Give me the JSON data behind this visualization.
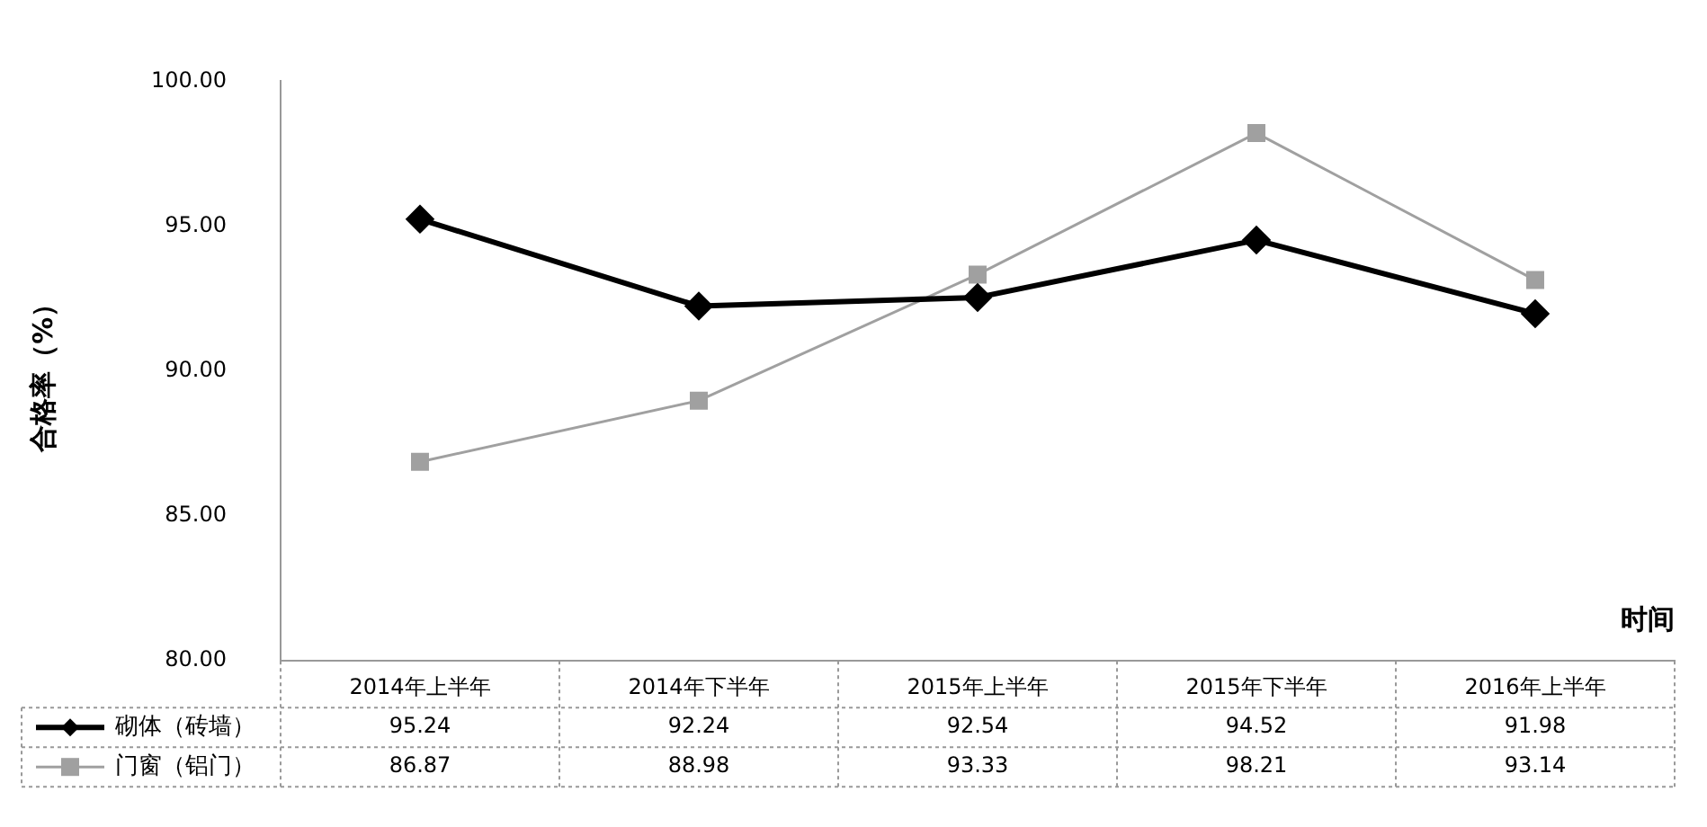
{
  "chart_data": {
    "type": "line",
    "xlabel": "时间",
    "ylabel": "合格率（%）",
    "categories": [
      "2014年上半年",
      "2014年下半年",
      "2015年上半年",
      "2015年下半年",
      "2016年上半年"
    ],
    "series": [
      {
        "name": "砌体（砖墙）",
        "color": "#000000",
        "marker": "diamond",
        "values": [
          95.24,
          92.24,
          92.54,
          94.52,
          91.98
        ]
      },
      {
        "name": "门窗（铝门）",
        "color": "#a0a0a0",
        "marker": "square",
        "values": [
          86.87,
          88.98,
          93.33,
          98.21,
          93.14
        ]
      }
    ],
    "ylim": [
      80,
      100
    ],
    "yticks": [
      {
        "value": 80,
        "label": "80.00"
      },
      {
        "value": 85,
        "label": "85.00"
      },
      {
        "value": 90,
        "label": "90.00"
      },
      {
        "value": 95,
        "label": "95.00"
      },
      {
        "value": 100,
        "label": "100.00"
      }
    ],
    "grid": false,
    "legend": "bottom left",
    "data_labels": true
  }
}
